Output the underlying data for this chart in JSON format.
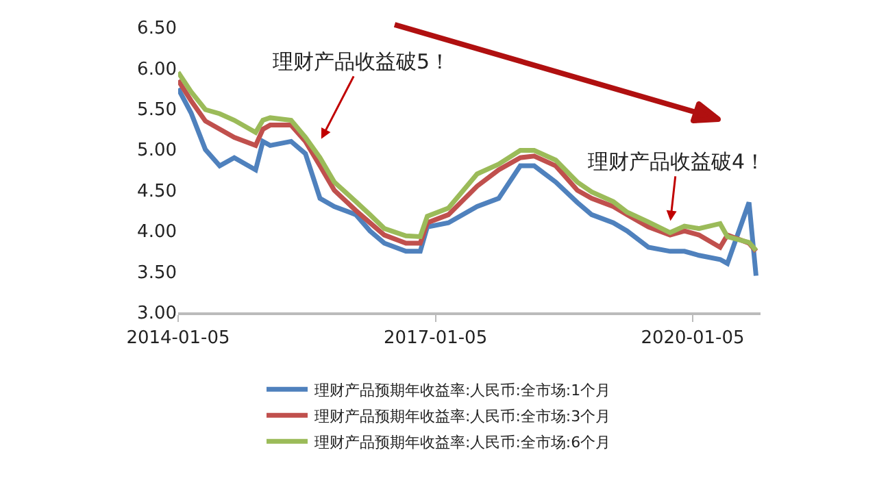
{
  "chart_data": {
    "type": "line",
    "x": [
      "2014-01-05",
      "2014-03",
      "2014-05",
      "2014-07",
      "2014-09",
      "2014-12",
      "2015-01",
      "2015-02",
      "2015-05",
      "2015-07",
      "2015-09",
      "2015-11",
      "2016-02",
      "2016-04",
      "2016-06",
      "2016-09",
      "2016-11",
      "2016-12",
      "2017-03",
      "2017-07",
      "2017-10",
      "2018-01",
      "2018-03",
      "2018-06",
      "2018-09",
      "2018-11",
      "2019-02",
      "2019-04",
      "2019-07",
      "2019-10",
      "2019-12",
      "2020-02",
      "2020-05",
      "2020-06",
      "2020-09",
      "2020-10"
    ],
    "series": [
      {
        "name": "理财产品预期年收益率:人民币:全市场:1个月",
        "color": "#4f81bd",
        "values": [
          5.75,
          5.45,
          5.0,
          4.8,
          4.9,
          4.75,
          5.1,
          5.05,
          5.1,
          4.95,
          4.4,
          4.3,
          4.2,
          4.0,
          3.85,
          3.75,
          3.75,
          4.05,
          4.1,
          4.3,
          4.4,
          4.8,
          4.8,
          4.6,
          4.35,
          4.2,
          4.1,
          4.0,
          3.8,
          3.75,
          3.75,
          3.7,
          3.65,
          3.6,
          4.35,
          3.45
        ]
      },
      {
        "name": "理财产品预期年收益率:人民币:全市场:3个月",
        "color": "#c0504d",
        "values": [
          5.85,
          5.6,
          5.35,
          5.25,
          5.15,
          5.05,
          5.25,
          5.3,
          5.3,
          5.1,
          4.8,
          4.5,
          4.25,
          4.1,
          3.95,
          3.85,
          3.85,
          4.1,
          4.2,
          4.55,
          4.75,
          4.9,
          4.92,
          4.8,
          4.5,
          4.4,
          4.3,
          4.2,
          4.05,
          3.95,
          4.0,
          3.95,
          3.8,
          3.95,
          3.85,
          3.75
        ]
      },
      {
        "name": "理财产品预期年收益率:人民币:全市场:6个月",
        "color": "#9bbb59",
        "values": [
          5.95,
          5.71,
          5.49,
          5.44,
          5.36,
          5.21,
          5.36,
          5.39,
          5.36,
          5.15,
          4.9,
          4.6,
          4.36,
          4.2,
          4.03,
          3.94,
          3.93,
          4.18,
          4.28,
          4.7,
          4.82,
          4.99,
          4.99,
          4.87,
          4.6,
          4.48,
          4.36,
          4.23,
          4.11,
          3.98,
          4.06,
          4.03,
          4.09,
          3.93,
          3.86,
          3.76
        ]
      }
    ],
    "xlim": [
      "2014-01-05",
      "2020-10-20"
    ],
    "xticks": [
      {
        "value": "2014-01-05",
        "label": "2014-01-05"
      },
      {
        "value": "2017-01-05",
        "label": "2017-01-05"
      },
      {
        "value": "2020-01-05",
        "label": "2020-01-05"
      }
    ],
    "ylim": [
      3,
      6.5
    ],
    "yticks": [
      {
        "value": 3,
        "label": "3.00"
      },
      {
        "value": 3.5,
        "label": "3.50"
      },
      {
        "value": 4,
        "label": "4.00"
      },
      {
        "value": 4.5,
        "label": "4.50"
      },
      {
        "value": 5,
        "label": "5.00"
      },
      {
        "value": 5.5,
        "label": "5.50"
      },
      {
        "value": 6,
        "label": "6.00"
      },
      {
        "value": 6.5,
        "label": "6.50"
      }
    ],
    "annotations": [
      {
        "text": "理财产品收益破5！",
        "x": "2015-09",
        "y": 5.1
      },
      {
        "text": "理财产品收益破4！",
        "x": "2019-10",
        "y": 4.09
      }
    ],
    "grid": false,
    "legend": "bottom",
    "marker": "none",
    "line_style": "solid"
  }
}
